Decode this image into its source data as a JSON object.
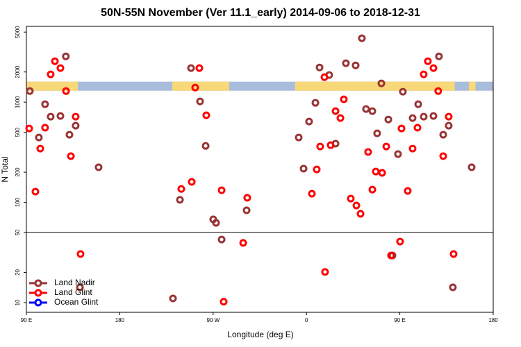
{
  "chart_data": {
    "type": "scatter",
    "title": "50N-55N November (Ver 11.1_early)   2014-09-06 to 2018-12-31",
    "xlabel": "Longitude (deg E)",
    "ylabel": "N Total",
    "xlim": [
      90,
      540
    ],
    "xticks": [
      {
        "value": 90,
        "label": "90 E"
      },
      {
        "value": 180,
        "label": "180"
      },
      {
        "value": 270,
        "label": "90 W"
      },
      {
        "value": 360,
        "label": "0"
      },
      {
        "value": 450,
        "label": "90 E"
      },
      {
        "value": 540,
        "label": "180"
      }
    ],
    "ylim": [
      8,
      5700
    ],
    "log_y": true,
    "yticks": [
      10,
      20,
      50,
      100,
      200,
      500,
      1000,
      2000,
      5000
    ],
    "reference_line": 50,
    "legend": "lower left",
    "land_band": {
      "ylim": [
        1300,
        1600
      ],
      "ocean_color": "#a8bcdc",
      "land_color": "#f8d878",
      "land_ranges": [
        [
          90,
          139.6
        ],
        [
          230.6,
          285.5
        ],
        [
          349,
          503
        ],
        [
          516.5,
          523
        ]
      ]
    },
    "series": [
      {
        "name": "Land Nadir",
        "color": "#993333",
        "x": [
          93.3,
          102,
          108,
          113.4,
          128,
          122.8,
          131.5,
          137.5,
          141.6,
          159.6,
          231.3,
          238,
          248.7,
          257.4,
          262.8,
          270.1,
          272.8,
          278.2,
          302.3,
          352.5,
          357.2,
          362.5,
          368.6,
          372.6,
          381.9,
          388,
          398,
          407.4,
          413.4,
          417.4,
          423.5,
          428.1,
          432.2,
          438.9,
          442.9,
          448.2,
          452.9,
          462.3,
          467.7,
          473,
          482.4,
          487.7,
          491.8,
          497.1,
          501.1,
          519.2
        ],
        "values": [
          1290,
          444,
          953,
          716,
          2860,
          727,
          473,
          582,
          14.2,
          224,
          11,
          106,
          2184,
          1016,
          366,
          67.7,
          62.5,
          42.6,
          83.3,
          444,
          217,
          640,
          984,
          2218,
          1862,
          385,
          2443,
          2327,
          4335,
          853,
          813,
          488,
          1538,
          671,
          29.5,
          303,
          1270,
          693,
          953,
          716,
          727,
          2860,
          473,
          582,
          14.2,
          224
        ]
      },
      {
        "name": "Land Glint",
        "color": "#ff0000",
        "x": [
          92.7,
          98.7,
          103.4,
          108,
          113.4,
          117.5,
          122.8,
          128.2,
          132.9,
          137.5,
          142.2,
          239.3,
          249.4,
          252.7,
          256.7,
          263.4,
          278.2,
          280.2,
          299,
          302.9,
          365.2,
          369.9,
          373.2,
          377.3,
          377.9,
          383.3,
          388,
          392.7,
          396,
          402.7,
          408.1,
          412.1,
          419.4,
          423.5,
          426.8,
          432.9,
          436.9,
          441.5,
          450.2,
          451.6,
          457.6,
          462.3,
          467,
          473,
          477,
          482.4,
          487,
          491.8,
          497.1,
          501.8
        ],
        "values": [
          546,
          128,
          344,
          556,
          1892,
          2560,
          2184,
          1290,
          289,
          716,
          30.5,
          136,
          160,
          1397,
          2184,
          739,
          132,
          10.2,
          39.4,
          111,
          122,
          213,
          361,
          1775,
          20.2,
          372,
          813,
          693,
          1066,
          109,
          93,
          76.9,
          318,
          134,
          203,
          197,
          361,
          29.5,
          40.6,
          546,
          130,
          344,
          556,
          1892,
          2560,
          2184,
          1290,
          289,
          716,
          30.5
        ]
      },
      {
        "name": "Ocean Glint",
        "color": "#0000ff",
        "x": [],
        "values": []
      }
    ]
  }
}
